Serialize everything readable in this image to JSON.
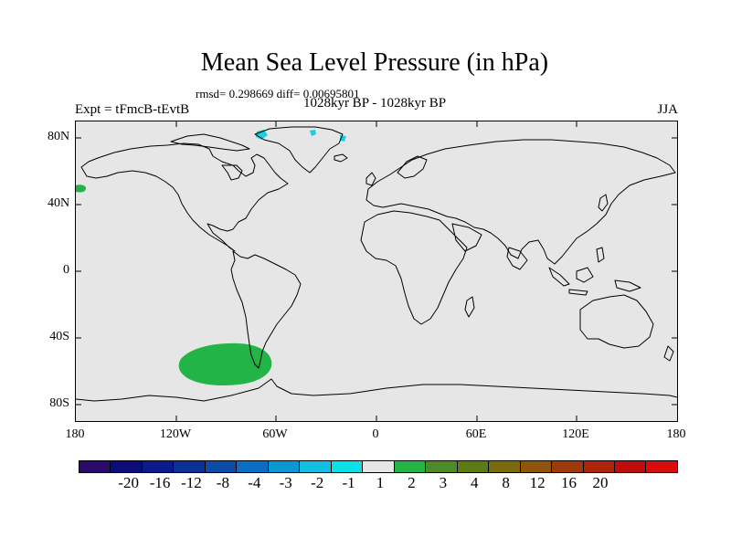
{
  "title": "Mean Sea Level Pressure (in hPa)",
  "stats": "rmsd= 0.298669 diff= 0.00695801",
  "period": "1028kyr BP - 1028kyr BP",
  "experiment": "Expt = tFmcB-tEvtB",
  "season": "JJA",
  "map": {
    "x_ticks": [
      "180",
      "120W",
      "60W",
      "0",
      "60E",
      "120E",
      "180"
    ],
    "y_ticks": [
      "80N",
      "40N",
      "0",
      "40S",
      "80S"
    ],
    "land_color": "#e6e6e6",
    "coast_color": "#000000"
  },
  "anomaly_regions": [
    {
      "name": "south-pacific-positive",
      "category": "1 to 2",
      "color": "#22b447"
    },
    {
      "name": "north-pacific-edge-positive",
      "category": "1 to 2",
      "color": "#22b447"
    },
    {
      "name": "greenland-negative",
      "category": "-2 to -1",
      "color": "#19cfe0"
    }
  ],
  "colorbar": {
    "colors": [
      "#2a0a6a",
      "#0c0c7a",
      "#0c1a8c",
      "#0a3296",
      "#0a4ca8",
      "#0a6ec4",
      "#0b97d2",
      "#11c0e0",
      "#0be0e6",
      "#e6e6e6",
      "#22b447",
      "#4b8c28",
      "#5e7a14",
      "#7a6a0c",
      "#8c560c",
      "#9c3a0c",
      "#ae240c",
      "#c00c0c",
      "#d80c0c"
    ],
    "labels": [
      "-20",
      "-16",
      "-12",
      "-8",
      "-4",
      "-3",
      "-2",
      "-1",
      "1",
      "2",
      "3",
      "4",
      "8",
      "12",
      "16",
      "20"
    ]
  }
}
